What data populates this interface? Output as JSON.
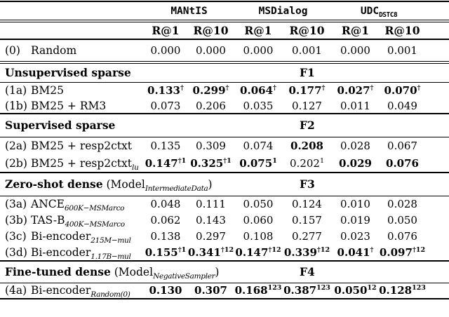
{
  "table": {
    "dataset_groups": [
      {
        "label": "MANtIS",
        "sub": ""
      },
      {
        "label": "MSDialog",
        "sub": ""
      },
      {
        "label": "UDC",
        "sub": "DSTC8"
      }
    ],
    "metric_header": [
      "R@1",
      "R@10",
      "R@1",
      "R@10",
      "R@1",
      "R@10"
    ],
    "rows": [
      {
        "type": "data",
        "id": "(0)",
        "name": "Random",
        "sub": "",
        "cells": [
          {
            "v": "0.000"
          },
          {
            "v": "0.000"
          },
          {
            "v": "0.000"
          },
          {
            "v": "0.001"
          },
          {
            "v": "0.000"
          },
          {
            "v": "0.001"
          }
        ]
      },
      {
        "type": "section",
        "title": "Unsupervised sparse",
        "paren_pre": "",
        "sub": "",
        "paren_post": "",
        "tag": "F1"
      },
      {
        "type": "data",
        "id": "(1a)",
        "name": "BM25",
        "sub": "",
        "cells": [
          {
            "v": "0.133",
            "sup": "†",
            "b": true
          },
          {
            "v": "0.299",
            "sup": "†",
            "b": true
          },
          {
            "v": "0.064",
            "sup": "†",
            "b": true
          },
          {
            "v": "0.177",
            "sup": "†",
            "b": true
          },
          {
            "v": "0.027",
            "sup": "†",
            "b": true
          },
          {
            "v": "0.070",
            "sup": "†",
            "b": true
          }
        ]
      },
      {
        "type": "data",
        "id": "(1b)",
        "name": "BM25 + RM3",
        "sub": "",
        "cells": [
          {
            "v": "0.073"
          },
          {
            "v": "0.206"
          },
          {
            "v": "0.035"
          },
          {
            "v": "0.127"
          },
          {
            "v": "0.011"
          },
          {
            "v": "0.049"
          }
        ]
      },
      {
        "type": "section",
        "title": "Supervised sparse",
        "paren_pre": "",
        "sub": "",
        "paren_post": "",
        "tag": "F2"
      },
      {
        "type": "data",
        "id": "(2a)",
        "name": "BM25 + resp2ctxt",
        "sub": "",
        "cells": [
          {
            "v": "0.135"
          },
          {
            "v": "0.309"
          },
          {
            "v": "0.074"
          },
          {
            "v": "0.208",
            "b": true
          },
          {
            "v": "0.028"
          },
          {
            "v": "0.067"
          }
        ]
      },
      {
        "type": "data",
        "id": "(2b)",
        "name": "BM25 + resp2ctxt",
        "sub": "lu",
        "cells": [
          {
            "v": "0.147",
            "sup": "†1",
            "b": true
          },
          {
            "v": "0.325",
            "sup": "†1",
            "b": true
          },
          {
            "v": "0.075",
            "sup": "1",
            "b": true
          },
          {
            "v": "0.202",
            "sup": "1"
          },
          {
            "v": "0.029",
            "b": true
          },
          {
            "v": "0.076",
            "b": true
          }
        ]
      },
      {
        "type": "section",
        "title": "Zero-shot dense",
        "paren_pre": "(Model",
        "sub": "IntermediateData",
        "paren_post": ")",
        "tag": "F3"
      },
      {
        "type": "data",
        "id": "(3a)",
        "name": "ANCE",
        "sub": "600K−MSMarco",
        "cells": [
          {
            "v": "0.048"
          },
          {
            "v": "0.111"
          },
          {
            "v": "0.050"
          },
          {
            "v": "0.124"
          },
          {
            "v": "0.010"
          },
          {
            "v": "0.028"
          }
        ]
      },
      {
        "type": "data",
        "id": "(3b)",
        "name": "TAS-B",
        "sub": "400K−MSMarco",
        "cells": [
          {
            "v": "0.062"
          },
          {
            "v": "0.143"
          },
          {
            "v": "0.060"
          },
          {
            "v": "0.157"
          },
          {
            "v": "0.019"
          },
          {
            "v": "0.050"
          }
        ]
      },
      {
        "type": "data",
        "id": "(3c)",
        "name": "Bi-encoder",
        "sub": "215M−mul",
        "cells": [
          {
            "v": "0.138"
          },
          {
            "v": "0.297"
          },
          {
            "v": "0.108"
          },
          {
            "v": "0.277"
          },
          {
            "v": "0.023"
          },
          {
            "v": "0.076"
          }
        ]
      },
      {
        "type": "data",
        "id": "(3d)",
        "name": "Bi-encoder",
        "sub": "1.17B−mul",
        "cells": [
          {
            "v": "0.155",
            "sup": "†1",
            "b": true
          },
          {
            "v": "0.341",
            "sup": "†12",
            "b": true
          },
          {
            "v": "0.147",
            "sup": "†12",
            "b": true
          },
          {
            "v": "0.339",
            "sup": "†12",
            "b": true
          },
          {
            "v": "0.041",
            "sup": "†",
            "b": true
          },
          {
            "v": "0.097",
            "sup": "†12",
            "b": true
          }
        ]
      },
      {
        "type": "section",
        "title": "Fine-tuned dense",
        "paren_pre": "(Model",
        "sub": "NegativeSampler",
        "paren_post": ")",
        "tag": "F4"
      },
      {
        "type": "data",
        "id": "(4a)",
        "name": "Bi-encoder",
        "sub": "Random(0)",
        "cells": [
          {
            "v": "0.130",
            "b": true
          },
          {
            "v": "0.307",
            "b": true
          },
          {
            "v": "0.168",
            "sup": "123",
            "b": true
          },
          {
            "v": "0.387",
            "sup": "123",
            "b": true
          },
          {
            "v": "0.050",
            "sup": "12",
            "b": true
          },
          {
            "v": "0.128",
            "sup": "123",
            "b": true
          }
        ]
      }
    ]
  }
}
